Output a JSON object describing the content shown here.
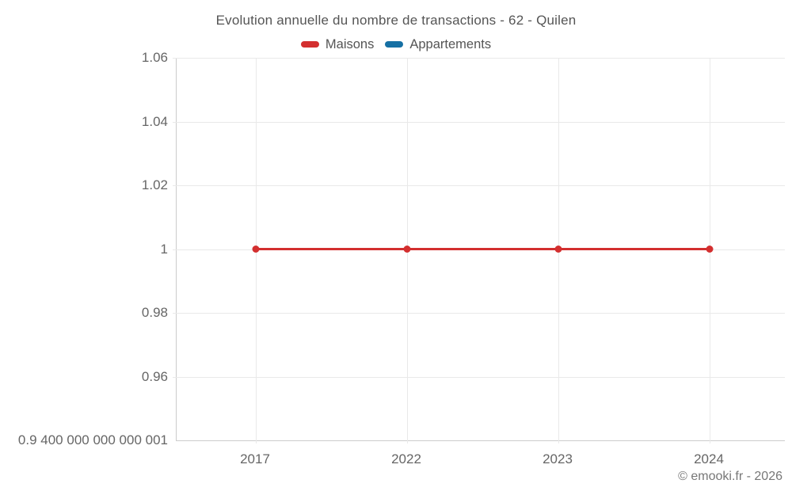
{
  "title": "Evolution annuelle du nombre de transactions - 62 - Quilen",
  "legend": {
    "items": [
      {
        "label": "Maisons",
        "color": "#d32f2f"
      },
      {
        "label": "Appartements",
        "color": "#1670a4"
      }
    ]
  },
  "chart_data": {
    "type": "line",
    "title": "Evolution annuelle du nombre de transactions - 62 - Quilen",
    "categories": [
      "2017",
      "2022",
      "2023",
      "2024"
    ],
    "series": [
      {
        "name": "Maisons",
        "color": "#d32f2f",
        "values": [
          1,
          1,
          1,
          1
        ]
      },
      {
        "name": "Appartements",
        "color": "#1670a4",
        "values": []
      }
    ],
    "xlabel": "",
    "ylabel": "",
    "ylim": [
      0.94,
      1.06
    ],
    "yticks": [
      "1.06",
      "1.04",
      "1.02",
      "1",
      "0.98",
      "0.96",
      "0.9 400 000 000 000 001"
    ],
    "grid": true,
    "legend_position": "top"
  },
  "footer": {
    "copyright": "© emooki.fr - 2026"
  },
  "colors": {
    "background": "#ffffff",
    "grid": "#e9e9e9",
    "axis_line": "#cccccc",
    "tick_text": "#666666",
    "title_text": "#555555",
    "footer_text": "#777777"
  }
}
